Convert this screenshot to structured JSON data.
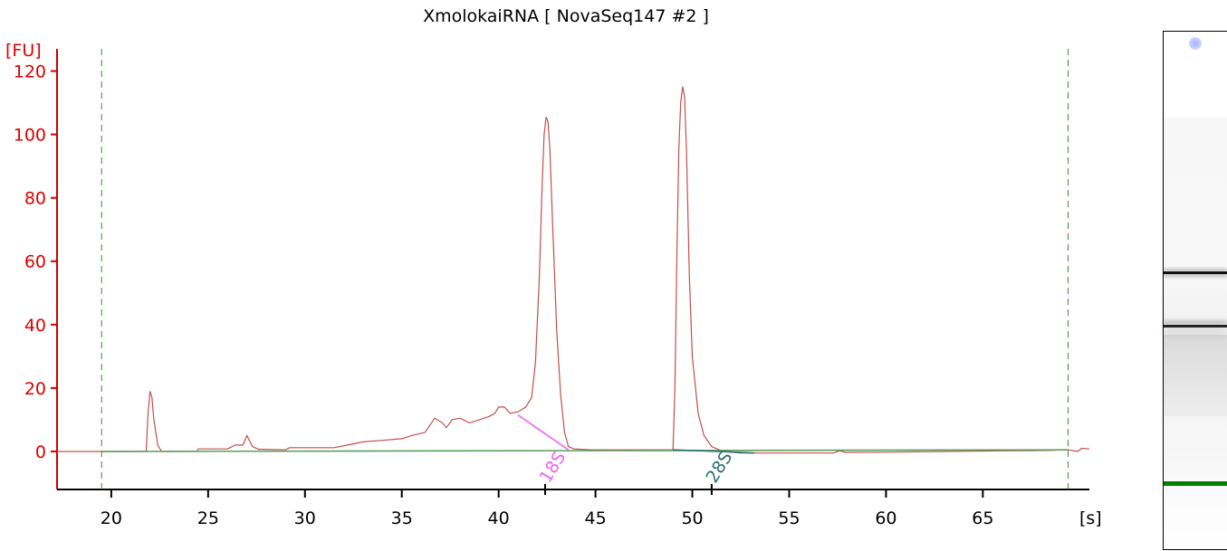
{
  "chart_data": {
    "type": "line",
    "title": "XmolokaiRNA  [ NovaSeq147 #2 ]",
    "ylabel": "[FU]",
    "xlabel": "[s]",
    "xlim": [
      17.2,
      70.5
    ],
    "ylim": [
      -12,
      127
    ],
    "x_ticks": [
      20,
      25,
      30,
      35,
      40,
      45,
      50,
      55,
      60,
      65
    ],
    "y_ticks": [
      0,
      20,
      40,
      60,
      80,
      100,
      120
    ],
    "grid": false,
    "markers": [
      19.5,
      69.4
    ],
    "peak_labels": [
      {
        "label": "18S",
        "x": 42.4
      },
      {
        "label": "28S",
        "x": 51.0
      }
    ],
    "series": [
      {
        "color": "#c0504d",
        "points": [
          [
            17.2,
            0
          ],
          [
            21.8,
            0
          ],
          [
            21.9,
            12
          ],
          [
            22.0,
            19
          ],
          [
            22.1,
            17
          ],
          [
            22.2,
            10
          ],
          [
            22.4,
            2
          ],
          [
            22.6,
            0
          ],
          [
            24.4,
            0
          ],
          [
            24.5,
            0.8
          ],
          [
            26.0,
            0.8
          ],
          [
            26.4,
            2
          ],
          [
            26.8,
            2
          ],
          [
            27.0,
            5
          ],
          [
            27.3,
            1.5
          ],
          [
            27.6,
            0.7
          ],
          [
            29.0,
            0.5
          ],
          [
            29.2,
            1.2
          ],
          [
            31.5,
            1.2
          ],
          [
            32.2,
            2
          ],
          [
            33.0,
            3
          ],
          [
            34.0,
            3.5
          ],
          [
            35.0,
            4
          ],
          [
            35.5,
            5
          ],
          [
            36.2,
            6
          ],
          [
            36.7,
            10.5
          ],
          [
            37.1,
            9
          ],
          [
            37.3,
            7.5
          ],
          [
            37.6,
            10
          ],
          [
            38.0,
            10.5
          ],
          [
            38.5,
            9
          ],
          [
            39.0,
            10
          ],
          [
            39.5,
            11
          ],
          [
            39.8,
            12
          ],
          [
            40.0,
            14
          ],
          [
            40.3,
            14
          ],
          [
            40.6,
            12
          ],
          [
            41.0,
            12.5
          ],
          [
            41.4,
            14
          ],
          [
            41.7,
            17
          ],
          [
            41.9,
            28
          ],
          [
            42.1,
            55
          ],
          [
            42.25,
            85
          ],
          [
            42.35,
            100
          ],
          [
            42.45,
            105.5
          ],
          [
            42.55,
            104
          ],
          [
            42.65,
            95
          ],
          [
            42.8,
            70
          ],
          [
            43.0,
            38
          ],
          [
            43.2,
            18
          ],
          [
            43.4,
            6
          ],
          [
            43.6,
            1.5
          ],
          [
            43.9,
            0.8
          ],
          [
            44.8,
            0.5
          ],
          [
            49.0,
            0.5
          ],
          [
            49.1,
            20
          ],
          [
            49.2,
            60
          ],
          [
            49.3,
            95
          ],
          [
            49.4,
            110
          ],
          [
            49.5,
            115
          ],
          [
            49.6,
            112
          ],
          [
            49.7,
            95
          ],
          [
            49.85,
            55
          ],
          [
            50.0,
            30
          ],
          [
            50.3,
            12
          ],
          [
            50.6,
            5
          ],
          [
            51.0,
            1.5
          ],
          [
            51.6,
            0
          ],
          [
            52.5,
            -0.5
          ],
          [
            57.3,
            -0.5
          ],
          [
            57.6,
            0.2
          ],
          [
            57.9,
            -0.3
          ],
          [
            60.0,
            -0.2
          ],
          [
            63.0,
            0
          ],
          [
            66.0,
            0.2
          ],
          [
            68.3,
            0.3
          ],
          [
            69.4,
            0.5
          ],
          [
            69.9,
            0
          ],
          [
            70.1,
            1
          ],
          [
            70.5,
            0.8
          ]
        ]
      },
      {
        "color": "#5b9e5b",
        "points": [
          [
            19.5,
            0
          ],
          [
            69.4,
            0.5
          ]
        ]
      },
      {
        "color": "#ee66ee",
        "points": [
          [
            41.0,
            11.5
          ],
          [
            43.6,
            0.5
          ]
        ]
      },
      {
        "color": "#2a6f6f",
        "points": [
          [
            49.0,
            0.5
          ],
          [
            51.4,
            0
          ],
          [
            53.2,
            -0.5
          ]
        ]
      }
    ]
  }
}
